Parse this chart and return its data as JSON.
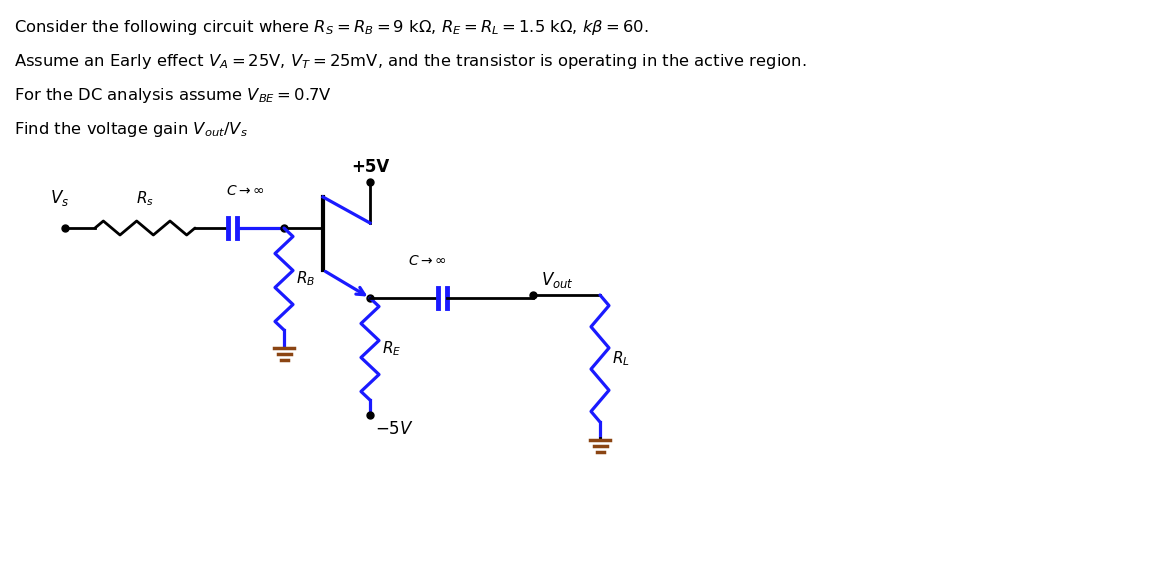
{
  "black": "#000000",
  "blue": "#1a1aff",
  "brown": "#8B4513",
  "bg": "#FFFFFF",
  "lw": 2.0,
  "lw_blue": 2.3,
  "lw_cap": 3.5,
  "lw_gnd": 2.5
}
